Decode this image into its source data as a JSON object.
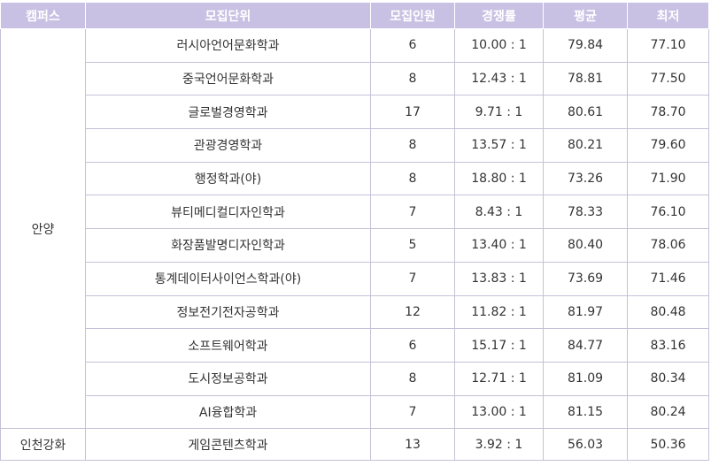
{
  "headers": [
    "캠퍼스",
    "모집단위",
    "모집인원",
    "경쟁률",
    "평균",
    "최저"
  ],
  "groups": [
    {
      "campus": "안양",
      "rows": [
        {
          "unit": "러시아언어문화학과",
          "quota": "6",
          "ratio": "10.00 : 1",
          "avg": "79.84",
          "min": "77.10"
        },
        {
          "unit": "중국언어문화학과",
          "quota": "8",
          "ratio": "12.43 : 1",
          "avg": "78.81",
          "min": "77.50"
        },
        {
          "unit": "글로벌경영학과",
          "quota": "17",
          "ratio": "9.71 : 1",
          "avg": "80.61",
          "min": "78.70"
        },
        {
          "unit": "관광경영학과",
          "quota": "8",
          "ratio": "13.57 : 1",
          "avg": "80.21",
          "min": "79.60"
        },
        {
          "unit": "행정학과(야)",
          "quota": "8",
          "ratio": "18.80 : 1",
          "avg": "73.26",
          "min": "71.90"
        },
        {
          "unit": "뷰티메디컬디자인학과",
          "quota": "7",
          "ratio": "8.43 : 1",
          "avg": "78.33",
          "min": "76.10"
        },
        {
          "unit": "화장품발명디자인학과",
          "quota": "5",
          "ratio": "13.40 : 1",
          "avg": "80.40",
          "min": "78.06"
        },
        {
          "unit": "통계데이터사이언스학과(야)",
          "quota": "7",
          "ratio": "13.83 : 1",
          "avg": "73.69",
          "min": "71.46"
        },
        {
          "unit": "정보전기전자공학과",
          "quota": "12",
          "ratio": "11.82 : 1",
          "avg": "81.97",
          "min": "80.48"
        },
        {
          "unit": "소프트웨어학과",
          "quota": "6",
          "ratio": "15.17 : 1",
          "avg": "84.77",
          "min": "83.16"
        },
        {
          "unit": "도시정보공학과",
          "quota": "8",
          "ratio": "12.71 : 1",
          "avg": "81.09",
          "min": "80.34"
        },
        {
          "unit": "AI융합학과",
          "quota": "7",
          "ratio": "13.00 : 1",
          "avg": "81.15",
          "min": "80.24"
        }
      ]
    },
    {
      "campus": "인천강화",
      "rows": [
        {
          "unit": "게임콘텐츠학과",
          "quota": "13",
          "ratio": "3.92 : 1",
          "avg": "56.03",
          "min": "50.36"
        }
      ]
    }
  ],
  "colors": {
    "header_bg": "#c9c1e3",
    "header_text": "#ffffff",
    "border": "#c6c1d8",
    "text": "#333333"
  }
}
